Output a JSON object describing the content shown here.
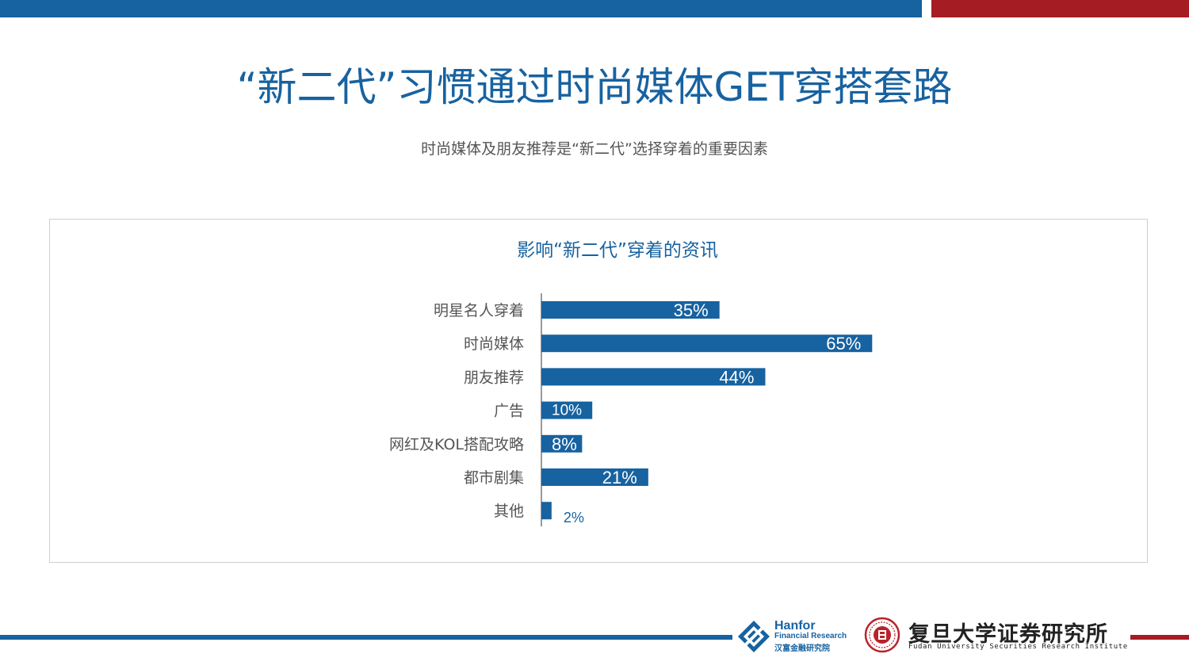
{
  "slide": {
    "title": "“新二代”习惯通过时尚媒体GET穿搭套路",
    "subtitle": "时尚媒体及朋友推荐是“新二代”选择穿着的重要因素"
  },
  "colors": {
    "accent_blue": "#1762a0",
    "accent_red": "#a61c23",
    "bar": "#1762a0",
    "label_text": "#555555"
  },
  "chart_data": {
    "type": "bar",
    "orientation": "horizontal",
    "title": "影响“新二代”穿着的资讯",
    "xlabel": "",
    "ylabel": "",
    "categories": [
      "明星名人穿着",
      "时尚媒体",
      "朋友推荐",
      "广告",
      "网红及KOL搭配攻略",
      "都市剧集",
      "其他"
    ],
    "values": [
      35,
      65,
      44,
      10,
      8,
      21,
      2
    ],
    "value_labels": [
      "35%",
      "65%",
      "44%",
      "10%",
      "8%",
      "21%",
      "2%"
    ],
    "unit": "%",
    "xlim": [
      0,
      100
    ],
    "grid": false,
    "legend": "none",
    "data_labels": "inside-end"
  },
  "footer": {
    "hanfor_name": "Hanfor",
    "hanfor_sub": "Financial Research",
    "hanfor_cn": "汉富金融研究院",
    "fudan_cn": "复旦大学证券研究所",
    "fudan_en": "Fudan University Securities Research Institute",
    "hanfor_icon": "hanfor-diamond-icon",
    "fudan_icon": "fudan-seal-icon"
  }
}
